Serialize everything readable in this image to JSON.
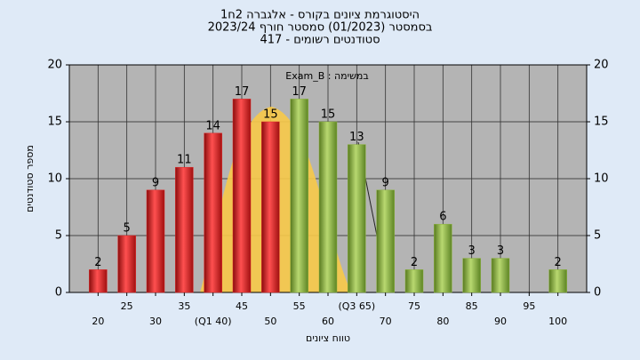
{
  "chart_data": {
    "type": "bar",
    "title": "היסטוגרמת ציונים בקורס - אלגברה 2ח1",
    "subtitle": "בסמסטר  (01/2023)  סמסטר חורף  2023/24",
    "subtitle2": "סטודנטים רשומים - 417",
    "annotation": "במשימה : Exam_B",
    "x_label": "טווח ציונים",
    "y_label": "מספר סטודנטים",
    "categories": [
      "20",
      "25",
      "30",
      "35",
      "(Q1 40)",
      "45",
      "50",
      "55",
      "60",
      "(Q3 65)",
      "70",
      "75",
      "80",
      "85",
      "90",
      "95",
      "100"
    ],
    "values": [
      2,
      5,
      9,
      11,
      14,
      17,
      15,
      17,
      15,
      13,
      9,
      2,
      6,
      3,
      3,
      0,
      2
    ],
    "colors": [
      "#e02828",
      "#e02828",
      "#e02828",
      "#e02828",
      "#e02828",
      "#e02828",
      "#e02828",
      "#8cb43c",
      "#8cb43c",
      "#8cb43c",
      "#8cb43c",
      "#8cb43c",
      "#8cb43c",
      "#8cb43c",
      "#8cb43c",
      "#8cb43c",
      "#8cb43c"
    ],
    "ylim": [
      0,
      20
    ],
    "yticks": [
      0,
      5,
      10,
      15,
      20
    ],
    "y2lim": [
      0,
      20
    ],
    "y2ticks": [
      0,
      5,
      10,
      15,
      20
    ],
    "grid": true
  }
}
